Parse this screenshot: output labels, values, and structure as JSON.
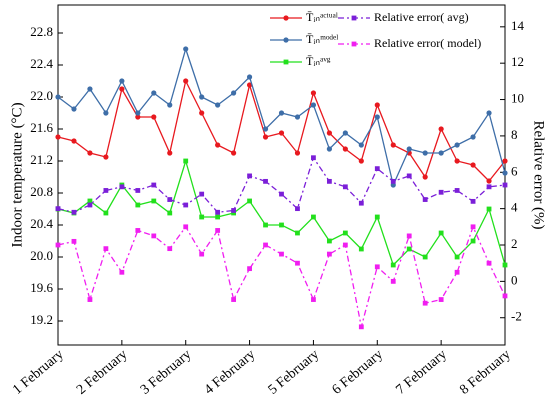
{
  "chart_data": {
    "type": "line",
    "y_label": "Indoor temperature (°C)",
    "y2_label": "Relative error (%)",
    "xlim": [
      0,
      7
    ],
    "xticks": [
      {
        "value": 0,
        "label": "1 February"
      },
      {
        "value": 1,
        "label": "2 February"
      },
      {
        "value": 2,
        "label": "3 February"
      },
      {
        "value": 3,
        "label": "4 February"
      },
      {
        "value": 4,
        "label": "5 February"
      },
      {
        "value": 5,
        "label": "6 February"
      },
      {
        "value": 6,
        "label": "7 February"
      },
      {
        "value": 7,
        "label": "8 February"
      }
    ],
    "ylim": [
      18.9,
      23.15
    ],
    "yticks": [
      19.2,
      19.6,
      {
        "value": 20.0,
        "label": "20.0"
      },
      20.4,
      20.8,
      21.2,
      21.6,
      {
        "value": 22.0,
        "label": "22.0"
      },
      22.4,
      22.8
    ],
    "y2lim": [
      -3.5,
      15.2
    ],
    "y2ticks": [
      -2,
      0,
      2,
      4,
      6,
      8,
      10,
      12,
      14
    ],
    "x": [
      0,
      0.25,
      0.5,
      0.75,
      1,
      1.25,
      1.5,
      1.75,
      2,
      2.25,
      2.5,
      2.75,
      3,
      3.25,
      3.5,
      3.75,
      4,
      4.25,
      4.5,
      4.75,
      5,
      5.25,
      5.5,
      5.75,
      6,
      6.25,
      6.5,
      6.75,
      7
    ],
    "series": [
      {
        "name": "T̄ᵢₙᵃᶜᵗᵘᵃˡ",
        "color": "#e8191f",
        "marker": "circle",
        "dash": "solid",
        "values": [
          21.5,
          21.45,
          21.3,
          21.25,
          22.1,
          21.75,
          21.75,
          21.3,
          22.2,
          21.8,
          21.4,
          21.3,
          22.15,
          21.5,
          21.55,
          21.3,
          22.05,
          21.55,
          21.35,
          21.2,
          21.9,
          21.4,
          21.3,
          21.0,
          21.6,
          21.2,
          21.15,
          20.95,
          21.2
        ]
      },
      {
        "name": "T̄ᵢₙᵐᵒᵈᵉˡ",
        "color": "#3e6ea8",
        "marker": "circle",
        "dash": "solid",
        "values": [
          22.0,
          21.85,
          22.1,
          21.8,
          22.2,
          21.8,
          22.05,
          21.9,
          22.6,
          22.0,
          21.9,
          22.05,
          22.25,
          21.6,
          21.8,
          21.75,
          21.9,
          21.35,
          21.55,
          21.4,
          21.75,
          20.9,
          21.35,
          21.3,
          21.3,
          21.4,
          21.5,
          21.8,
          21.05
        ]
      },
      {
        "name": "T̄ᵢₙᵃᵛᵍ",
        "color": "#22e01c",
        "marker": "square",
        "dash": "solid",
        "values": [
          20.6,
          20.55,
          20.7,
          20.55,
          20.9,
          20.65,
          20.7,
          20.55,
          21.2,
          20.5,
          20.5,
          20.55,
          20.7,
          20.4,
          20.4,
          20.3,
          20.5,
          20.2,
          20.3,
          20.1,
          20.5,
          19.9,
          20.1,
          20.0,
          20.3,
          20.0,
          20.2,
          20.6,
          19.9
        ]
      },
      {
        "name": "Relative error( avg)",
        "color": "#7b1fd8",
        "marker": "square",
        "dash": "dashdot",
        "axis": "y2",
        "values": [
          4.0,
          3.8,
          4.2,
          5.0,
          5.2,
          5.0,
          5.3,
          4.5,
          4.2,
          4.8,
          3.8,
          3.9,
          5.8,
          5.5,
          4.8,
          4.0,
          6.8,
          5.5,
          5.2,
          4.3,
          6.2,
          5.5,
          5.8,
          4.5,
          4.9,
          5.0,
          4.4,
          5.2,
          5.3
        ]
      },
      {
        "name": "Relative error( model)",
        "color": "#f01ef0",
        "marker": "square",
        "dash": "dashdot",
        "axis": "y2",
        "values": [
          2.0,
          2.2,
          -1.0,
          1.8,
          0.5,
          2.8,
          2.5,
          1.8,
          3.0,
          1.5,
          2.8,
          -1.0,
          0.7,
          2.0,
          1.5,
          1.0,
          -1.0,
          1.5,
          2.0,
          -2.5,
          0.8,
          0.0,
          2.5,
          -1.2,
          -1.0,
          0.5,
          3.0,
          1.0,
          -0.8
        ]
      }
    ]
  }
}
